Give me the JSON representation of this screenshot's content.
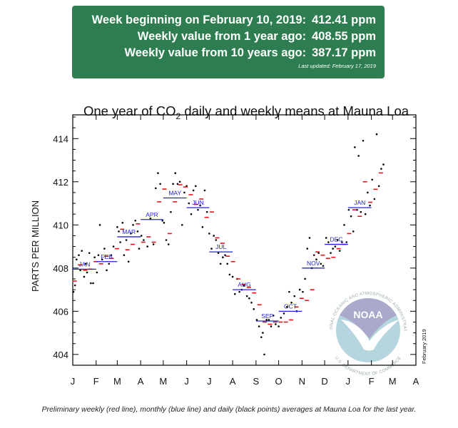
{
  "banner": {
    "rows": [
      {
        "label": "Week beginning on February 10, 2019:",
        "value": "412.41 ppm"
      },
      {
        "label": "Weekly value from 1 year ago:",
        "value": "408.55 ppm"
      },
      {
        "label": "Weekly value from 10 years ago:",
        "value": "387.17 ppm"
      }
    ],
    "last_updated": "Last updated: February 17, 2019",
    "color": "#2e7d50"
  },
  "caption": "Preliminary weekly (red line), monthly (blue line) and daily (black points) averages at Mauna Loa for the last year.",
  "logo": {
    "text": "NOAA",
    "ring_top": "NATIONAL OCEANIC AND ATMOSPHERIC ADMINISTRATION",
    "ring_bottom": "U.S. DEPARTMENT OF COMMERCE"
  },
  "chart_data": {
    "type": "scatter",
    "title_pre": "One year of CO",
    "title_sub": "2",
    "title_post": " daily and weekly means at Mauna Loa",
    "ylabel": "PARTS PER MILLION",
    "date_stamp": "February 2019",
    "xlim": [
      "2018-01-01",
      "2019-04-01"
    ],
    "ylim": [
      403.5,
      415.1
    ],
    "yticks": [
      404,
      406,
      408,
      410,
      412,
      414
    ],
    "xtick_labels": [
      "J",
      "F",
      "M",
      "A",
      "M",
      "J",
      "J",
      "A",
      "S",
      "O",
      "N",
      "D",
      "J",
      "F",
      "M",
      "A"
    ],
    "grid": false,
    "colors": {
      "weekly": "#e8141c",
      "monthly": "#2222dd",
      "daily": "#000000"
    },
    "monthly": [
      {
        "label": "JAN",
        "month": "2018-01",
        "value": 407.95
      },
      {
        "label": "FEB",
        "month": "2018-02",
        "value": 408.3
      },
      {
        "label": "MAR",
        "month": "2018-03",
        "value": 409.45
      },
      {
        "label": "APR",
        "month": "2018-04",
        "value": 410.25
      },
      {
        "label": "MAY",
        "month": "2018-05",
        "value": 411.25
      },
      {
        "label": "JUN",
        "month": "2018-06",
        "value": 410.8
      },
      {
        "label": "JUL",
        "month": "2018-07",
        "value": 408.75
      },
      {
        "label": "AUG",
        "month": "2018-08",
        "value": 407.0
      },
      {
        "label": "SEP",
        "month": "2018-09",
        "value": 405.55
      },
      {
        "label": "OCT",
        "month": "2018-10",
        "value": 406.0
      },
      {
        "label": "NOV",
        "month": "2018-11",
        "value": 408.0
      },
      {
        "label": "DEC",
        "month": "2018-12",
        "value": 409.1
      },
      {
        "label": "JAN",
        "month": "2019-01",
        "value": 410.8
      }
    ],
    "weekly_start": "2017-12-31",
    "weekly": [
      407.4,
      408.15,
      407.9,
      407.95,
      408.3,
      408.2,
      408.55,
      408.45,
      408.9,
      409.8,
      408.85,
      409.1,
      410.05,
      409.2,
      409.45,
      409.2,
      411.07,
      411.66,
      409.6,
      411.07,
      411.86,
      411.76,
      411.4,
      410.95,
      411.2,
      410.35,
      410.6,
      409.4,
      409.15,
      408.55,
      408.3,
      407.5,
      407.25,
      407.1,
      406.85,
      406.3,
      405.5,
      405.4,
      405.5,
      405.5,
      405.5,
      405.6,
      406.2,
      406.6,
      406.5,
      407.0,
      408.75,
      408.6,
      408.45,
      408.5,
      408.9,
      409.1,
      409.6,
      410.7,
      410.4,
      412.0,
      411.05,
      411.65,
      412.41
    ],
    "daily": [
      [
        "2018-01-02",
        406.9
      ],
      [
        "2018-01-04",
        407.2
      ],
      [
        "2018-01-06",
        408.4
      ],
      [
        "2018-01-09",
        408.6
      ],
      [
        "2018-01-11",
        407.9
      ],
      [
        "2018-01-13",
        408.8
      ],
      [
        "2018-01-16",
        407.6
      ],
      [
        "2018-01-18",
        408.2
      ],
      [
        "2018-01-20",
        407.8
      ],
      [
        "2018-01-23",
        408.7
      ],
      [
        "2018-01-25",
        407.3
      ],
      [
        "2018-01-28",
        407.3
      ],
      [
        "2018-01-30",
        408.5
      ],
      [
        "2018-02-02",
        407.8
      ],
      [
        "2018-02-04",
        408.6
      ],
      [
        "2018-02-06",
        410.0
      ],
      [
        "2018-02-09",
        408.4
      ],
      [
        "2018-02-12",
        408.9
      ],
      [
        "2018-02-15",
        407.9
      ],
      [
        "2018-02-18",
        408.2
      ],
      [
        "2018-02-21",
        408.6
      ],
      [
        "2018-02-24",
        409.0
      ],
      [
        "2018-03-01",
        409.9
      ],
      [
        "2018-03-03",
        409.7
      ],
      [
        "2018-03-05",
        409.2
      ],
      [
        "2018-03-08",
        410.1
      ],
      [
        "2018-03-10",
        408.6
      ],
      [
        "2018-03-13",
        409.3
      ],
      [
        "2018-03-16",
        408.3
      ],
      [
        "2018-03-19",
        409.6
      ],
      [
        "2018-03-22",
        410.0
      ],
      [
        "2018-03-25",
        410.2
      ],
      [
        "2018-03-28",
        409.7
      ],
      [
        "2018-03-30",
        408.9
      ],
      [
        "2018-04-02",
        409.5
      ],
      [
        "2018-04-05",
        409.3
      ],
      [
        "2018-04-10",
        409.0
      ],
      [
        "2018-04-14",
        410.3
      ],
      [
        "2018-04-18",
        409.1
      ],
      [
        "2018-04-21",
        411.7
      ],
      [
        "2018-04-24",
        412.4
      ],
      [
        "2018-04-27",
        411.9
      ],
      [
        "2018-04-30",
        410.2
      ],
      [
        "2018-05-02",
        410.1
      ],
      [
        "2018-05-05",
        409.3
      ],
      [
        "2018-05-08",
        409.1
      ],
      [
        "2018-05-11",
        410.6
      ],
      [
        "2018-05-14",
        411.9
      ],
      [
        "2018-05-17",
        412.4
      ],
      [
        "2018-05-20",
        411.9
      ],
      [
        "2018-05-23",
        412.0
      ],
      [
        "2018-05-26",
        410.0
      ],
      [
        "2018-05-29",
        411.5
      ],
      [
        "2018-06-01",
        411.8
      ],
      [
        "2018-06-04",
        411.0
      ],
      [
        "2018-06-07",
        410.5
      ],
      [
        "2018-06-10",
        411.6
      ],
      [
        "2018-06-13",
        411.8
      ],
      [
        "2018-06-16",
        410.7
      ],
      [
        "2018-06-19",
        410.9
      ],
      [
        "2018-06-22",
        409.9
      ],
      [
        "2018-06-25",
        411.6
      ],
      [
        "2018-06-28",
        410.6
      ],
      [
        "2018-07-01",
        409.6
      ],
      [
        "2018-07-04",
        408.9
      ],
      [
        "2018-07-07",
        409.5
      ],
      [
        "2018-07-10",
        409.3
      ],
      [
        "2018-07-13",
        408.7
      ],
      [
        "2018-07-16",
        408.2
      ],
      [
        "2018-07-19",
        408.5
      ],
      [
        "2018-07-22",
        408.6
      ],
      [
        "2018-07-25",
        408.2
      ],
      [
        "2018-07-28",
        407.7
      ],
      [
        "2018-08-01",
        407.6
      ],
      [
        "2018-08-04",
        406.8
      ],
      [
        "2018-08-07",
        407.5
      ],
      [
        "2018-08-10",
        406.9
      ],
      [
        "2018-08-13",
        407.0
      ],
      [
        "2018-08-16",
        407.2
      ],
      [
        "2018-08-20",
        406.7
      ],
      [
        "2018-08-23",
        406.6
      ],
      [
        "2018-08-26",
        406.4
      ],
      [
        "2018-08-29",
        406.1
      ],
      [
        "2018-09-02",
        405.6
      ],
      [
        "2018-09-05",
        405.3
      ],
      [
        "2018-09-08",
        404.8
      ],
      [
        "2018-09-10",
        405.0
      ],
      [
        "2018-09-12",
        404.0
      ],
      [
        "2018-09-15",
        405.6
      ],
      [
        "2018-09-18",
        405.6
      ],
      [
        "2018-09-21",
        405.3
      ],
      [
        "2018-09-24",
        405.8
      ],
      [
        "2018-09-27",
        405.4
      ],
      [
        "2018-10-01",
        405.3
      ],
      [
        "2018-10-04",
        405.7
      ],
      [
        "2018-10-08",
        405.9
      ],
      [
        "2018-10-12",
        406.2
      ],
      [
        "2018-10-15",
        406.9
      ],
      [
        "2018-10-18",
        406.4
      ],
      [
        "2018-10-22",
        406.7
      ],
      [
        "2018-10-25",
        406.0
      ],
      [
        "2018-10-29",
        407.0
      ],
      [
        "2018-11-02",
        406.9
      ],
      [
        "2018-11-05",
        407.5
      ],
      [
        "2018-11-08",
        408.9
      ],
      [
        "2018-11-11",
        409.4
      ],
      [
        "2018-11-14",
        408.0
      ],
      [
        "2018-11-17",
        408.6
      ],
      [
        "2018-11-20",
        408.4
      ],
      [
        "2018-11-23",
        408.7
      ],
      [
        "2018-11-26",
        408.2
      ],
      [
        "2018-11-29",
        408.1
      ],
      [
        "2018-12-03",
        409.4
      ],
      [
        "2018-12-06",
        409.2
      ],
      [
        "2018-12-09",
        408.7
      ],
      [
        "2018-12-12",
        408.9
      ],
      [
        "2018-12-15",
        409.0
      ],
      [
        "2018-12-18",
        409.3
      ],
      [
        "2018-12-21",
        408.8
      ],
      [
        "2018-12-24",
        409.2
      ],
      [
        "2018-12-27",
        410.0
      ],
      [
        "2018-12-30",
        409.2
      ],
      [
        "2019-01-02",
        410.7
      ],
      [
        "2019-01-05",
        410.4
      ],
      [
        "2019-01-08",
        409.7
      ],
      [
        "2019-01-10",
        413.6
      ],
      [
        "2019-01-13",
        410.7
      ],
      [
        "2019-01-15",
        413.2
      ],
      [
        "2019-01-18",
        410.6
      ],
      [
        "2019-01-21",
        413.9
      ],
      [
        "2019-01-24",
        410.5
      ],
      [
        "2019-01-27",
        411.5
      ],
      [
        "2019-01-30",
        410.9
      ],
      [
        "2019-02-02",
        412.1
      ],
      [
        "2019-02-05",
        411.2
      ],
      [
        "2019-02-08",
        414.2
      ],
      [
        "2019-02-11",
        411.8
      ],
      [
        "2019-02-14",
        412.6
      ],
      [
        "2019-02-17",
        412.8
      ]
    ]
  }
}
